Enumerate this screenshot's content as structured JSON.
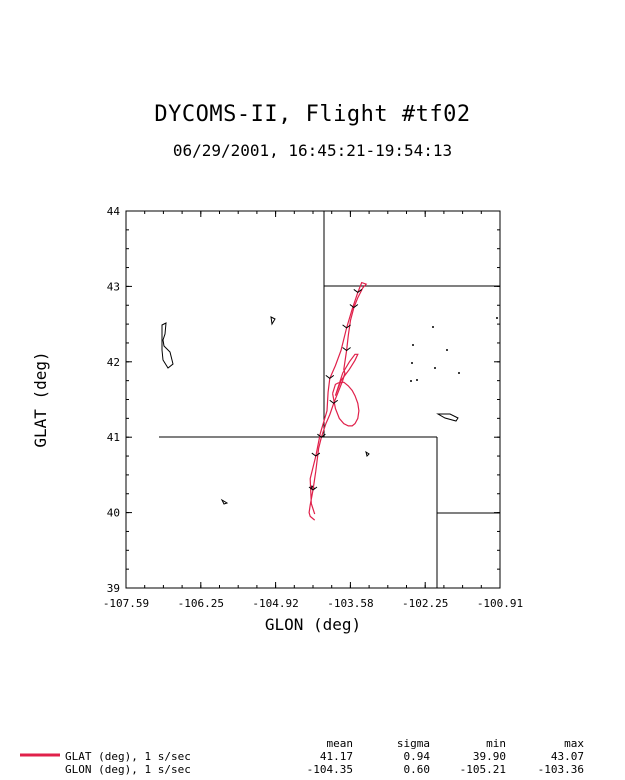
{
  "chart_data": {
    "type": "line",
    "title": "DYCOMS-II, Flight #tf02",
    "subtitle": "06/29/2001, 16:45:21-19:54:13",
    "xlabel": "GLON (deg)",
    "ylabel": "GLAT (deg)",
    "xlim": [
      -107.59,
      -100.91
    ],
    "ylim": [
      39,
      44
    ],
    "x_ticks": [
      "-107.59",
      "-106.25",
      "-104.92",
      "-103.58",
      "-102.25",
      "-100.91"
    ],
    "y_ticks": [
      "39",
      "40",
      "41",
      "42",
      "43",
      "44"
    ],
    "line_color": "#e0204a",
    "series": [
      {
        "name": "GLAT (deg), 1 s/sec",
        "x": [
          -104.22,
          -104.25,
          -104.28,
          -104.3,
          -104.2,
          -104.12,
          -104.0,
          -103.98,
          -103.95,
          -103.85,
          -103.75,
          -103.65,
          -103.55,
          -103.45,
          -103.38,
          -103.3,
          -103.36,
          -103.45,
          -103.52,
          -103.58,
          -103.62,
          -103.65,
          -103.7,
          -103.68,
          -103.72,
          -103.8,
          -103.88,
          -103.95,
          -104.02,
          -104.1,
          -104.15,
          -104.2,
          -104.25,
          -104.3,
          -104.32,
          -104.3,
          -104.22
        ],
        "y": [
          39.98,
          40.05,
          40.12,
          40.45,
          40.75,
          41.05,
          41.35,
          41.6,
          41.78,
          41.95,
          42.15,
          42.45,
          42.7,
          42.92,
          43.05,
          43.03,
          42.98,
          42.85,
          42.72,
          42.55,
          42.35,
          42.15,
          41.9,
          41.85,
          41.75,
          41.6,
          41.45,
          41.3,
          41.18,
          41.0,
          40.85,
          40.55,
          40.3,
          40.1,
          40.0,
          39.95,
          39.9
        ]
      },
      {
        "name": "",
        "x": [
          -103.9,
          -103.85,
          -103.8,
          -103.7,
          -103.62,
          -103.55,
          -103.5,
          -103.45,
          -103.43,
          -103.45,
          -103.5,
          -103.55,
          -103.62,
          -103.7,
          -103.78,
          -103.85,
          -103.9
        ],
        "y": [
          41.58,
          41.7,
          41.72,
          41.73,
          41.68,
          41.62,
          41.55,
          41.45,
          41.35,
          41.25,
          41.18,
          41.15,
          41.15,
          41.18,
          41.25,
          41.38,
          41.58
        ]
      },
      {
        "name": "",
        "x": [
          -103.85,
          -103.75,
          -103.6,
          -103.5,
          -103.45,
          -103.5,
          -103.6,
          -103.72,
          -103.85
        ],
        "y": [
          41.55,
          41.75,
          41.9,
          42.02,
          42.1,
          42.1,
          42.0,
          41.85,
          41.55
        ]
      }
    ],
    "stats": {
      "headers": [
        "mean",
        "sigma",
        "min",
        "max"
      ],
      "rows": [
        {
          "label": "GLAT (deg), 1 s/sec",
          "mean": "41.17",
          "sigma": "0.94",
          "min": "39.90",
          "max": "43.07"
        },
        {
          "label": "GLON (deg), 1 s/sec",
          "mean": "-104.35",
          "sigma": "0.60",
          "min": "-105.21",
          "max": "-103.36"
        }
      ]
    }
  }
}
